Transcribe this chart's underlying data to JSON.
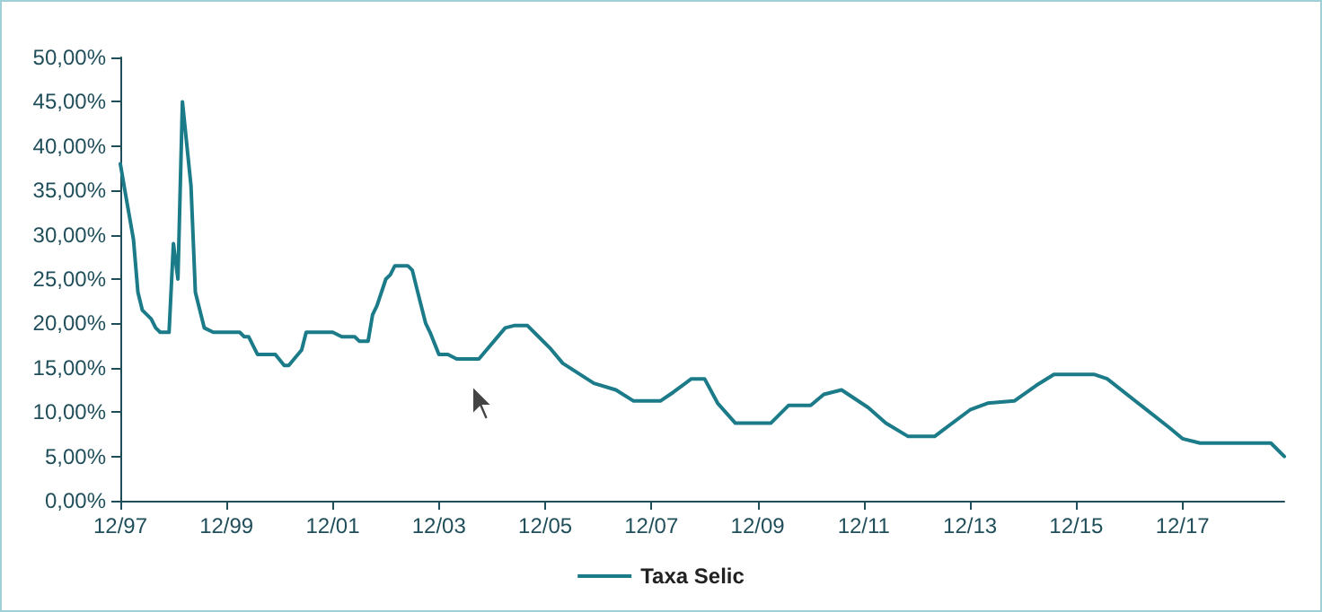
{
  "chart_data": {
    "type": "line",
    "x": [
      "1997-12",
      "1998-01",
      "1998-03",
      "1998-04",
      "1998-05",
      "1998-07",
      "1998-08",
      "1998-09",
      "1998-11",
      "1998-12",
      "1999-01",
      "1999-02",
      "1999-04",
      "1999-05",
      "1999-07",
      "1999-09",
      "2000-03",
      "2000-04",
      "2000-05",
      "2000-07",
      "2000-11",
      "2001-01",
      "2001-02",
      "2001-05",
      "2001-06",
      "2001-12",
      "2002-02",
      "2002-05",
      "2002-06",
      "2002-08",
      "2002-09",
      "2002-10",
      "2002-12",
      "2003-01",
      "2003-02",
      "2003-05",
      "2003-06",
      "2003-07",
      "2003-09",
      "2003-10",
      "2003-12",
      "2004-02",
      "2004-04",
      "2004-06",
      "2004-09",
      "2005-03",
      "2005-05",
      "2005-08",
      "2005-10",
      "2006-01",
      "2006-04",
      "2006-11",
      "2007-04",
      "2007-08",
      "2008-02",
      "2008-05",
      "2008-09",
      "2008-12",
      "2009-03",
      "2009-07",
      "2010-03",
      "2010-07",
      "2010-12",
      "2011-03",
      "2011-07",
      "2012-01",
      "2012-05",
      "2012-10",
      "2013-04",
      "2013-06",
      "2013-12",
      "2014-04",
      "2014-10",
      "2015-03",
      "2015-07",
      "2016-04",
      "2016-07",
      "2017-09",
      "2017-12",
      "2018-04",
      "2019-08",
      "2019-11"
    ],
    "series": [
      {
        "name": "Taxa Selic",
        "color": "#1b7b88",
        "values": [
          38,
          35,
          29.5,
          23.5,
          21.5,
          20.5,
          19.5,
          19,
          19,
          29,
          25,
          45,
          35.5,
          23.5,
          19.5,
          19,
          19,
          18.5,
          18.5,
          16.5,
          16.5,
          15.25,
          15.25,
          17,
          19,
          19,
          18.5,
          18.5,
          18,
          18,
          21,
          22,
          25,
          25.5,
          26.5,
          26.5,
          26,
          24,
          20,
          19,
          16.5,
          16.5,
          16,
          16,
          16,
          19.5,
          19.75,
          19.75,
          18.75,
          17.25,
          15.5,
          13.25,
          12.5,
          11.25,
          11.25,
          12.25,
          13.75,
          13.75,
          11,
          8.75,
          8.75,
          10.75,
          10.75,
          12,
          12.5,
          10.5,
          8.75,
          7.25,
          7.25,
          8,
          10.25,
          11,
          11.25,
          13,
          14.25,
          14.25,
          13.75,
          8.25,
          7,
          6.5,
          6.5,
          5
        ]
      }
    ],
    "xlim": [
      "1997-12",
      "2019-11"
    ],
    "xticks": [
      {
        "value": "1997-12",
        "label": "12/97"
      },
      {
        "value": "1999-12",
        "label": "12/99"
      },
      {
        "value": "2001-12",
        "label": "12/01"
      },
      {
        "value": "2003-12",
        "label": "12/03"
      },
      {
        "value": "2005-12",
        "label": "12/05"
      },
      {
        "value": "2007-12",
        "label": "12/07"
      },
      {
        "value": "2009-12",
        "label": "12/09"
      },
      {
        "value": "2011-12",
        "label": "12/11"
      },
      {
        "value": "2013-12",
        "label": "12/13"
      },
      {
        "value": "2015-12",
        "label": "12/15"
      },
      {
        "value": "2017-12",
        "label": "12/17"
      }
    ],
    "ylim": [
      0,
      50
    ],
    "yticks": [
      {
        "value": 0,
        "label": "0,00%"
      },
      {
        "value": 5,
        "label": "5,00%"
      },
      {
        "value": 10,
        "label": "10,00%"
      },
      {
        "value": 15,
        "label": "15,00%"
      },
      {
        "value": 20,
        "label": "20,00%"
      },
      {
        "value": 25,
        "label": "25,00%"
      },
      {
        "value": 30,
        "label": "30,00%"
      },
      {
        "value": 35,
        "label": "35,00%"
      },
      {
        "value": 40,
        "label": "40,00%"
      },
      {
        "value": 45,
        "label": "45,00%"
      },
      {
        "value": 50,
        "label": "50,00%"
      }
    ],
    "grid": false,
    "legend": "bottom",
    "marker": "none",
    "line_style": "solid"
  }
}
